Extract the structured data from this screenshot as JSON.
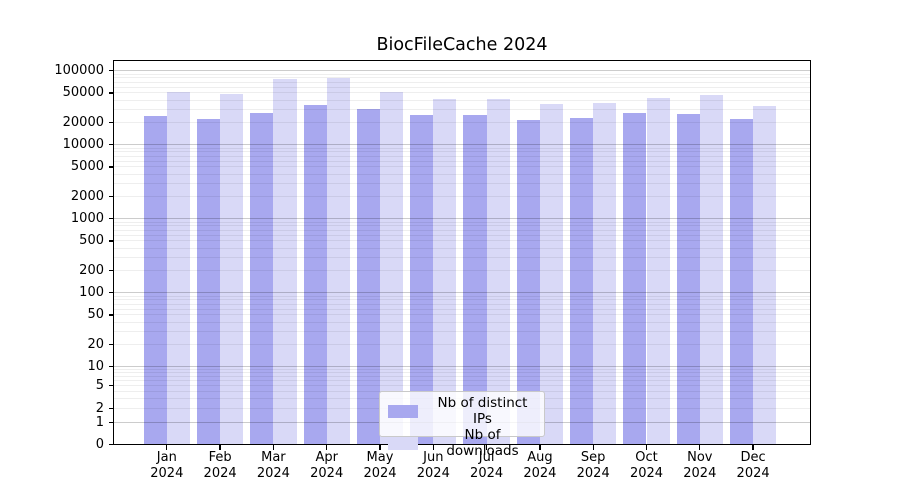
{
  "title": "BiocFileCache 2024",
  "chart_data": {
    "type": "bar",
    "title": "BiocFileCache 2024",
    "categories": [
      "Jan 2024",
      "Feb 2024",
      "Mar 2024",
      "Apr 2024",
      "May 2024",
      "Jun 2024",
      "Jul 2024",
      "Aug 2024",
      "Sep 2024",
      "Oct 2024",
      "Nov 2024",
      "Dec 2024"
    ],
    "series": [
      {
        "name": "Nb of distinct IPs",
        "color": "#a8a8ef",
        "values": [
          24400,
          22400,
          27200,
          34500,
          30000,
          25000,
          25400,
          21600,
          22700,
          27100,
          25800,
          22000
        ]
      },
      {
        "name": "Nb of downloads",
        "color": "#d9d9f7",
        "values": [
          52000,
          48900,
          77500,
          80400,
          51600,
          41000,
          41400,
          35800,
          37000,
          43100,
          47000,
          33300
        ]
      }
    ],
    "yscale": "log-with-zero-baseline",
    "yticks": [
      0,
      1,
      2,
      5,
      10,
      20,
      50,
      100,
      200,
      500,
      1000,
      2000,
      5000,
      10000,
      20000,
      50000,
      100000
    ],
    "ylim": [
      0,
      100000
    ],
    "xlabel": "",
    "ylabel": "",
    "grid": true,
    "legend_position": "lower center"
  },
  "colors": {
    "background": "#ffffff",
    "distinct_ips_bar": "#a8a8ef",
    "downloads_bar": "#d9d9f7",
    "grid_decade": "rgba(0,0,0,0.20)",
    "grid_minor": "rgba(0,0,0,0.065)",
    "axis": "#000000",
    "legend_border": "#c9c9c9"
  }
}
